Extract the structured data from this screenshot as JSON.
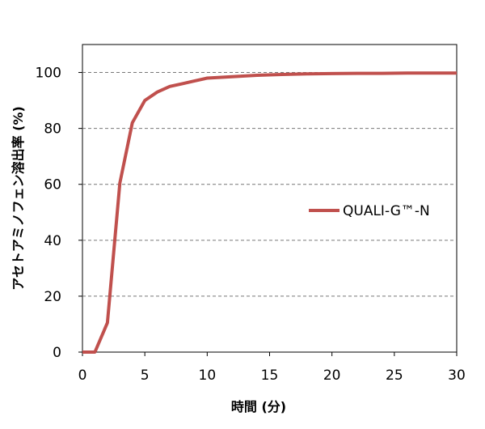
{
  "chart_data": {
    "type": "line",
    "xlabel": "時間 (分)",
    "ylabel": "アセトアミノフェン溶出率 (%)",
    "xlim": [
      0,
      30
    ],
    "ylim": [
      0,
      110
    ],
    "xticks": [
      "0",
      "5",
      "10",
      "15",
      "20",
      "25",
      "30"
    ],
    "yticks": [
      "0",
      "20",
      "40",
      "60",
      "80",
      "100"
    ],
    "grid": "horizontal-dashed",
    "legend_position": "right-middle",
    "series": [
      {
        "name": "QUALI-G™-N",
        "color": "#c0504d",
        "x": [
          0,
          1,
          2,
          3,
          4,
          5,
          6,
          7,
          8,
          9,
          10,
          12,
          14,
          16,
          18,
          20,
          22,
          24,
          26,
          28,
          30
        ],
        "y": [
          0,
          0,
          10.5,
          60.5,
          82,
          90,
          93,
          95,
          96,
          97,
          98,
          98.5,
          99,
          99.3,
          99.5,
          99.6,
          99.7,
          99.7,
          99.8,
          99.8,
          99.8
        ]
      }
    ]
  }
}
